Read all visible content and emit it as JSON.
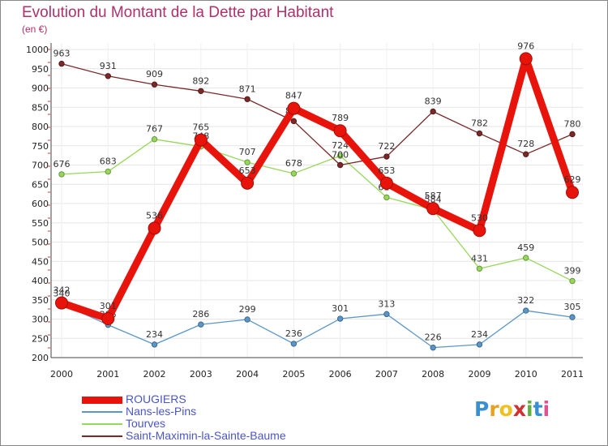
{
  "title": "Evolution du Montant de la Dette par Habitant",
  "subtitle": "(en €)",
  "brand": {
    "letters": [
      "P",
      "r",
      "o",
      "x",
      "i",
      "t",
      "i"
    ],
    "colors": [
      "#3a8fd0",
      "#e8a020",
      "#f0c020",
      "#d03030",
      "#60b040",
      "#3a8fd0",
      "#e05090"
    ]
  },
  "chart_data": {
    "type": "line",
    "title": "Evolution du Montant de la Dette par Habitant",
    "subtitle": "(en €)",
    "xlabel": "",
    "ylabel": "",
    "x": [
      "2000",
      "2001",
      "2002",
      "2003",
      "2004",
      "2005",
      "2006",
      "2007",
      "2008",
      "2009",
      "2010",
      "2011"
    ],
    "ylim": [
      200,
      1000
    ],
    "yticks": [
      200,
      250,
      300,
      350,
      400,
      450,
      500,
      550,
      600,
      650,
      700,
      750,
      800,
      850,
      900,
      950,
      1000
    ],
    "grid": true,
    "legend_position": "bottom-left",
    "series": [
      {
        "name": "ROUGIERS",
        "color": "#e8140c",
        "values": [
          342,
          301,
          536,
          765,
          653,
          847,
          789,
          653,
          587,
          530,
          976,
          629
        ],
        "emphasis": true
      },
      {
        "name": "Nans-les-Pins",
        "color": "#5a96c8",
        "values": [
          340,
          285,
          234,
          286,
          299,
          236,
          301,
          313,
          226,
          234,
          322,
          305
        ]
      },
      {
        "name": "Tourves",
        "color": "#96d85a",
        "values": [
          676,
          683,
          767,
          748,
          707,
          678,
          724,
          616,
          584,
          431,
          459,
          399
        ]
      },
      {
        "name": "Saint-Maximin-la-Sainte-Baume",
        "color": "#7a2828",
        "values": [
          963,
          931,
          909,
          892,
          871,
          814,
          700,
          722,
          839,
          782,
          728,
          780
        ]
      }
    ]
  }
}
